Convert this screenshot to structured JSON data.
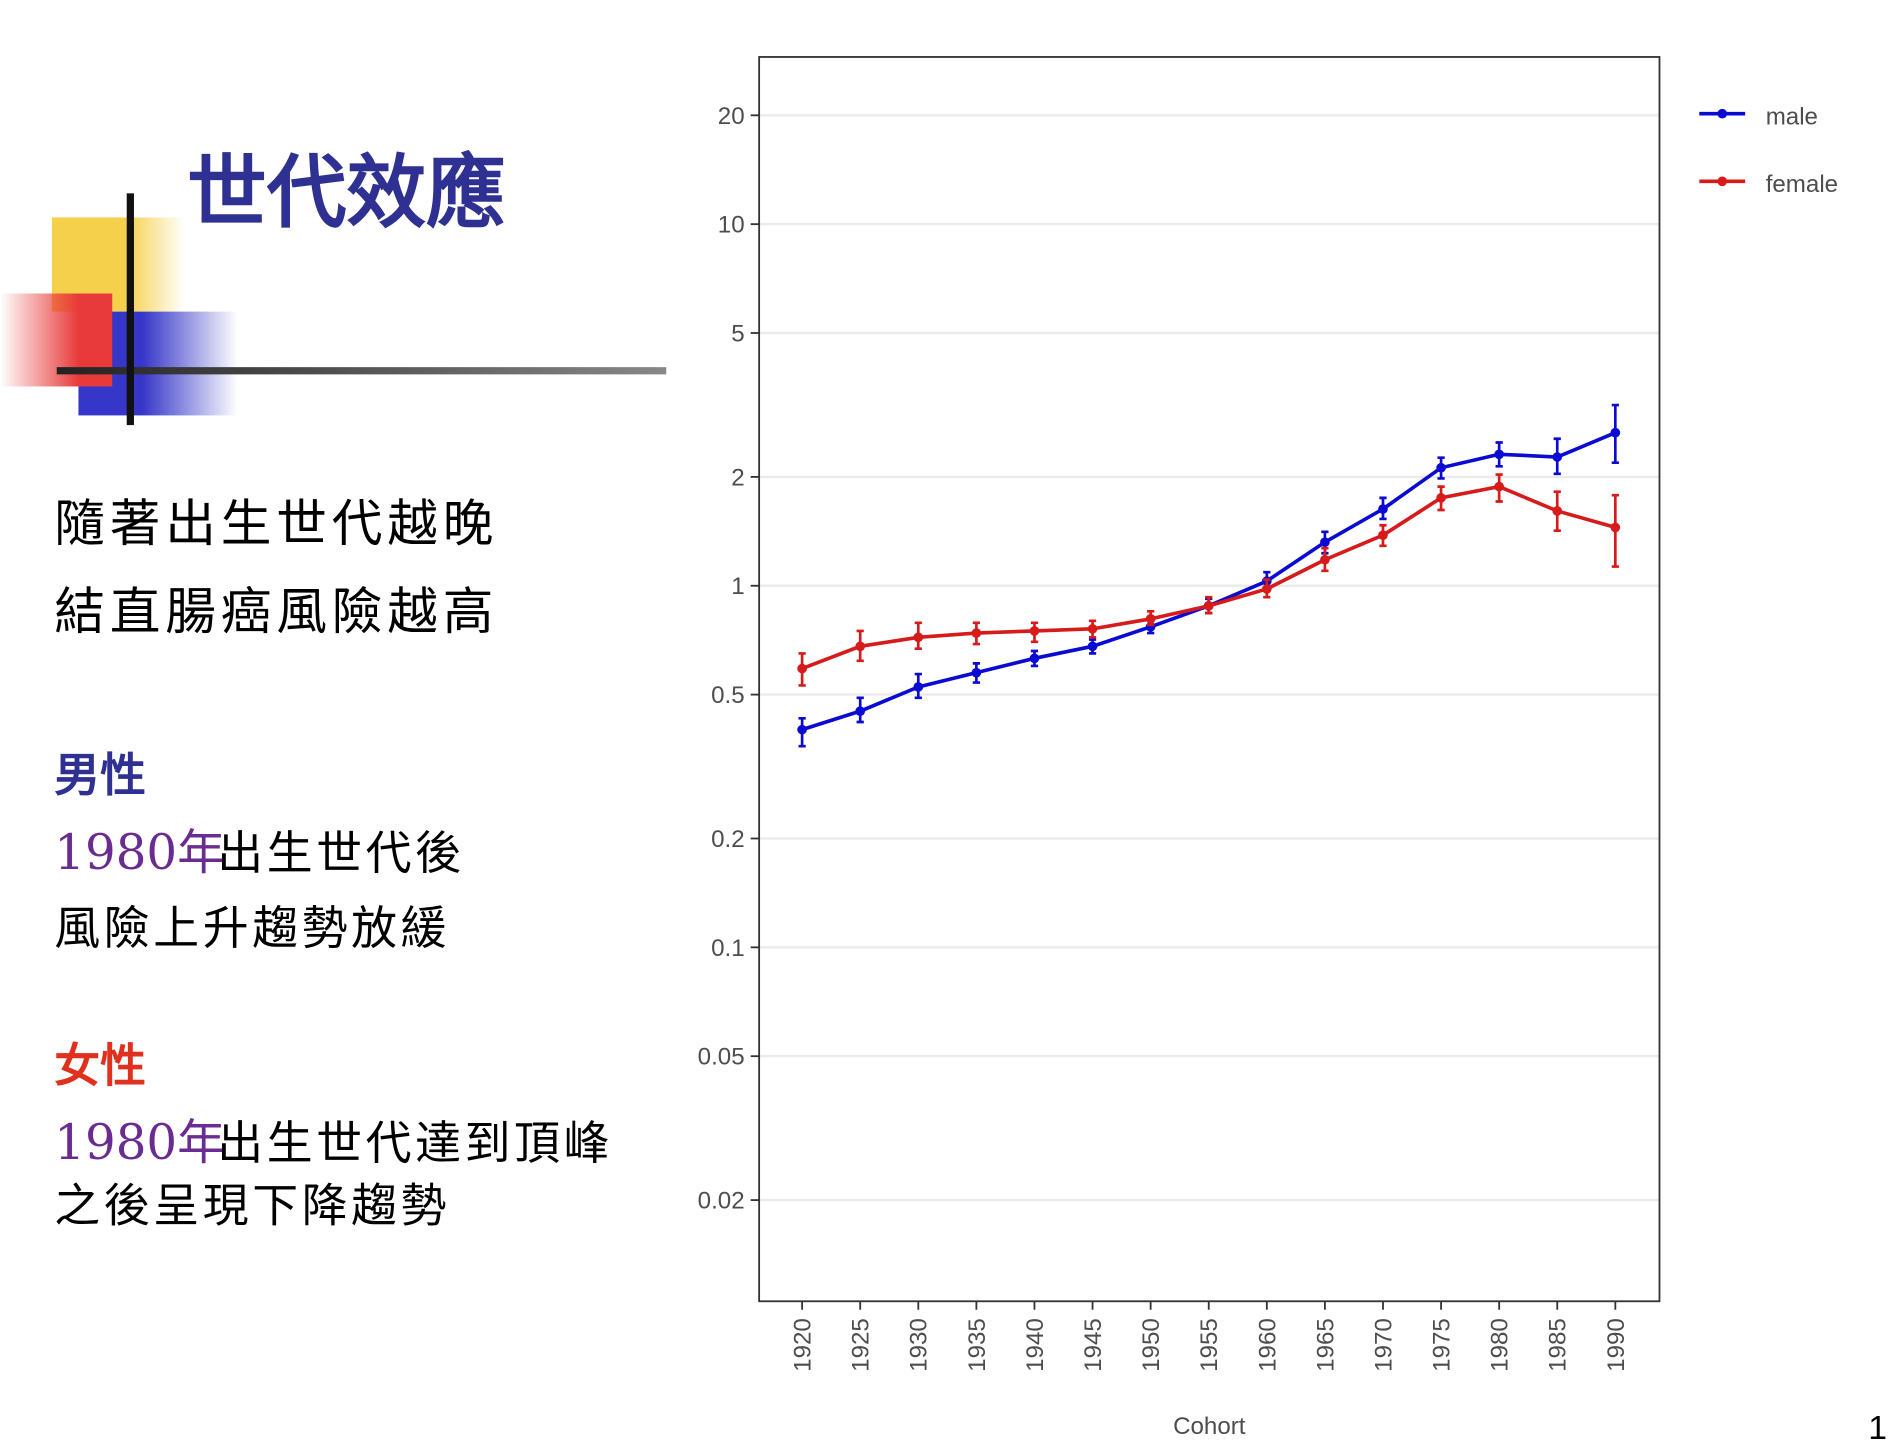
{
  "slide": {
    "title": "世代效應",
    "intro": [
      "隨著出生世代越晚",
      "結直腸癌風險越高"
    ],
    "male_heading": "男性",
    "male_year": "1980年",
    "male_line1": "出生世代後",
    "male_line2": "風險上升趨勢放緩",
    "female_heading": "女性",
    "female_year": "1980年",
    "female_line1": "出生世代達到頂峰",
    "female_line2": "之後呈現下降趨勢",
    "page_number": "1"
  },
  "chart_data": {
    "type": "line",
    "xlabel": "Cohort",
    "log_y": true,
    "grid": true,
    "legend": "right",
    "x": [
      1920,
      1925,
      1930,
      1935,
      1940,
      1945,
      1950,
      1955,
      1960,
      1965,
      1970,
      1975,
      1980,
      1985,
      1990
    ],
    "xlim": [
      1916.3,
      1993.8
    ],
    "xticks": [
      1920,
      1925,
      1930,
      1935,
      1940,
      1945,
      1950,
      1955,
      1960,
      1965,
      1970,
      1975,
      1980,
      1985,
      1990
    ],
    "ylim": [
      0.0105,
      29
    ],
    "yticks": [
      0.02,
      0.05,
      0.1,
      0.2,
      0.5,
      1,
      2,
      5,
      10,
      20
    ],
    "series": [
      {
        "name": "male",
        "color": "#0a0ad2",
        "values": [
          0.4,
          0.45,
          0.525,
          0.575,
          0.63,
          0.68,
          0.77,
          0.88,
          1.03,
          1.32,
          1.63,
          2.12,
          2.31,
          2.27,
          2.65
        ],
        "lower": [
          0.36,
          0.42,
          0.49,
          0.54,
          0.6,
          0.65,
          0.74,
          0.84,
          0.98,
          1.23,
          1.53,
          1.98,
          2.14,
          2.04,
          2.19
        ],
        "upper": [
          0.43,
          0.49,
          0.57,
          0.61,
          0.66,
          0.71,
          0.8,
          0.92,
          1.09,
          1.41,
          1.75,
          2.26,
          2.49,
          2.55,
          3.16
        ]
      },
      {
        "name": "female",
        "color": "#d71a1a",
        "values": [
          0.59,
          0.68,
          0.72,
          0.74,
          0.75,
          0.76,
          0.81,
          0.88,
          0.98,
          1.18,
          1.38,
          1.75,
          1.88,
          1.61,
          1.45
        ],
        "lower": [
          0.53,
          0.62,
          0.67,
          0.69,
          0.7,
          0.72,
          0.78,
          0.84,
          0.93,
          1.1,
          1.29,
          1.62,
          1.71,
          1.42,
          1.13
        ],
        "upper": [
          0.65,
          0.75,
          0.79,
          0.79,
          0.79,
          0.8,
          0.85,
          0.93,
          1.04,
          1.27,
          1.47,
          1.88,
          2.03,
          1.82,
          1.78
        ]
      }
    ]
  }
}
